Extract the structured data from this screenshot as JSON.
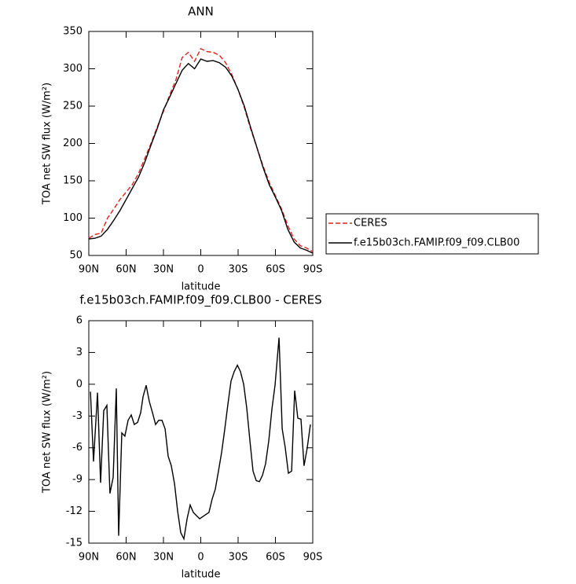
{
  "chart_data": [
    {
      "type": "line",
      "title": "ANN",
      "xlabel": "latitude",
      "ylabel": "TOA net SW flux (W/m²)",
      "x": [
        90,
        85,
        80,
        75,
        70,
        65,
        60,
        55,
        50,
        45,
        40,
        35,
        30,
        25,
        20,
        15,
        10,
        5,
        0,
        -5,
        -10,
        -15,
        -20,
        -25,
        -30,
        -35,
        -40,
        -45,
        -50,
        -55,
        -60,
        -65,
        -70,
        -75,
        -80,
        -85,
        -90
      ],
      "series": [
        {
          "name": "CERES",
          "color": "#e0201b",
          "dashed": true,
          "values": [
            73,
            78,
            80,
            100,
            112,
            125,
            135,
            145,
            160,
            180,
            200,
            222,
            243,
            265,
            285,
            315,
            322,
            310,
            327,
            323,
            322,
            318,
            308,
            292,
            272,
            248,
            220,
            195,
            170,
            148,
            130,
            112,
            90,
            72,
            63,
            60,
            55
          ]
        },
        {
          "name": "f.e15b03ch.FAMIP.f09_f09.CLB00",
          "color": "#000000",
          "dashed": false,
          "values": [
            72,
            73,
            76,
            85,
            97,
            110,
            125,
            140,
            155,
            175,
            198,
            220,
            245,
            262,
            280,
            298,
            307,
            300,
            313,
            310,
            311,
            308,
            302,
            290,
            272,
            250,
            222,
            195,
            168,
            145,
            128,
            110,
            85,
            68,
            60,
            57,
            53
          ]
        }
      ],
      "xlim": [
        90,
        -90
      ],
      "xticks": [
        {
          "value": 90,
          "label": "90N"
        },
        {
          "value": 60,
          "label": "60N"
        },
        {
          "value": 30,
          "label": "30N"
        },
        0,
        {
          "value": -30,
          "label": "30S"
        },
        {
          "value": -60,
          "label": "60S"
        },
        {
          "value": -90,
          "label": "90S"
        }
      ],
      "ylim": [
        50,
        350
      ],
      "yticks": [
        50,
        100,
        150,
        200,
        250,
        300,
        350
      ],
      "legend": "outside-right"
    },
    {
      "type": "line",
      "title": "f.e15b03ch.FAMIP.f09_f09.CLB00 - CERES",
      "xlabel": "latitude",
      "ylabel": "TOA net SW flux (W/m²)",
      "x": [
        88.7,
        86.2,
        83,
        80.5,
        78,
        75.5,
        73,
        70.4,
        67.9,
        66,
        63.5,
        61,
        58.4,
        55.9,
        53.4,
        50.8,
        48.3,
        46.4,
        43.9,
        41.4,
        38.8,
        36.3,
        33.8,
        31.2,
        28.7,
        26.2,
        23.7,
        21.1,
        18.6,
        16.1,
        13.6,
        11,
        8.5,
        6,
        3.5,
        0.9,
        -1.6,
        -4.1,
        -6.6,
        -9.2,
        -11.7,
        -14.2,
        -16.8,
        -19.3,
        -21.8,
        -24.3,
        -26.9,
        -29.4,
        -31.9,
        -34.5,
        -37,
        -39.5,
        -42,
        -44.6,
        -47.1,
        -49.6,
        -52.1,
        -54.7,
        -57.2,
        -59.7,
        -62.9,
        -65.4,
        -67.9,
        -70.4,
        -73,
        -75.5,
        -78,
        -80.5,
        -83,
        -85.6,
        -88.1
      ],
      "color": "#000000",
      "values": [
        -0.7,
        -7.3,
        -0.8,
        -9.3,
        -2.5,
        -2.0,
        -10.3,
        -8.8,
        -0.4,
        -14.3,
        -4.6,
        -4.9,
        -3.4,
        -2.9,
        -3.8,
        -3.6,
        -2.7,
        -1.2,
        -0.1,
        -1.6,
        -2.7,
        -3.8,
        -3.4,
        -3.4,
        -4.2,
        -6.8,
        -7.7,
        -9.4,
        -12,
        -14,
        -14.6,
        -12.7,
        -11.4,
        -12.1,
        -12.4,
        -12.7,
        -12.5,
        -12.3,
        -12.1,
        -10.8,
        -9.9,
        -8.2,
        -6.4,
        -4.2,
        -1.9,
        0.3,
        1.2,
        1.8,
        1.2,
        0,
        -2.3,
        -5.3,
        -8.2,
        -9.1,
        -9.2,
        -8.6,
        -7.5,
        -5.3,
        -2.3,
        -0.1,
        4.4,
        -4.2,
        -6.0,
        -8.4,
        -8.2,
        -0.6,
        -3.2,
        -3.3,
        -7.7,
        -6.0,
        -3.8
      ],
      "xlim": [
        90,
        -90
      ],
      "xticks": [
        {
          "value": 90,
          "label": "90N"
        },
        {
          "value": 60,
          "label": "60N"
        },
        {
          "value": 30,
          "label": "30N"
        },
        0,
        {
          "value": -30,
          "label": "30S"
        },
        {
          "value": -60,
          "label": "60S"
        },
        {
          "value": -90,
          "label": "90S"
        }
      ],
      "ylim": [
        -15,
        6
      ],
      "yticks": [
        6,
        3,
        0,
        -3,
        -6,
        -9,
        -12,
        -15
      ]
    }
  ]
}
